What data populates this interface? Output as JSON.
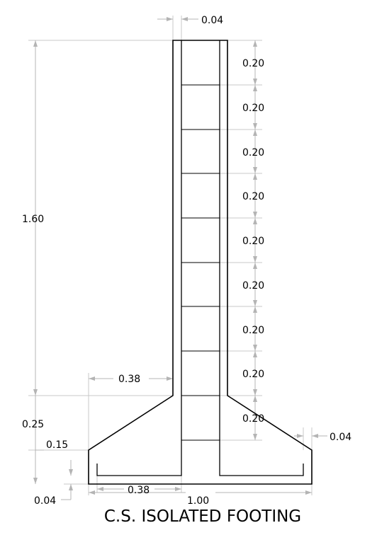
{
  "title": "C.S. ISOLATED FOOTING",
  "dimensions": {
    "column_height": "1.60",
    "haunch_depth": "0.25",
    "footing_edge": "0.15",
    "footing_bottom_cover": "0.04",
    "top_cover": "0.04",
    "side_cover": "0.04",
    "pedestal_offset": "0.38",
    "bottom_bar_offset": "0.38",
    "footing_width": "1.00",
    "tie_spacing": [
      "0.20",
      "0.20",
      "0.20",
      "0.20",
      "0.20",
      "0.20",
      "0.20",
      "0.20",
      "0.20"
    ]
  }
}
